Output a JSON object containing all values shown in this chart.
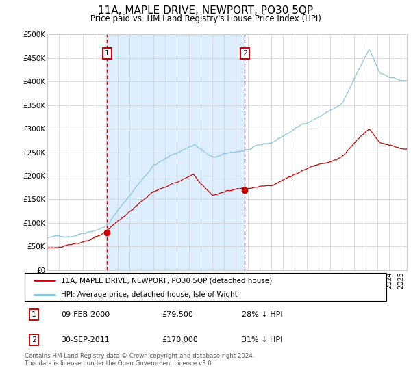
{
  "title": "11A, MAPLE DRIVE, NEWPORT, PO30 5QP",
  "subtitle": "Price paid vs. HM Land Registry's House Price Index (HPI)",
  "ylabel_ticks": [
    "£0",
    "£50K",
    "£100K",
    "£150K",
    "£200K",
    "£250K",
    "£300K",
    "£350K",
    "£400K",
    "£450K",
    "£500K"
  ],
  "ylim": [
    0,
    500000
  ],
  "xlim_start": 1995.0,
  "xlim_end": 2025.5,
  "hpi_color": "#7fbfdf",
  "price_color": "#cc0000",
  "span_color": "#ddeeff",
  "sale1": {
    "year": 2000.08,
    "value": 79500,
    "label": "1"
  },
  "sale2": {
    "year": 2011.75,
    "value": 170000,
    "label": "2"
  },
  "legend_entry1": "11A, MAPLE DRIVE, NEWPORT, PO30 5QP (detached house)",
  "legend_entry2": "HPI: Average price, detached house, Isle of Wight",
  "table_row1": [
    "1",
    "09-FEB-2000",
    "£79,500",
    "28% ↓ HPI"
  ],
  "table_row2": [
    "2",
    "30-SEP-2011",
    "£170,000",
    "31% ↓ HPI"
  ],
  "footnote": "Contains HM Land Registry data © Crown copyright and database right 2024.\nThis data is licensed under the Open Government Licence v3.0.",
  "grid_color": "#cccccc",
  "vline_color": "#cc0000"
}
